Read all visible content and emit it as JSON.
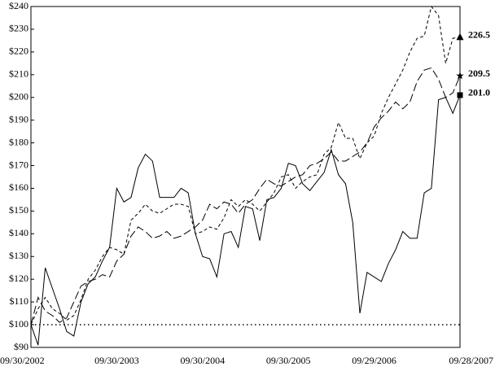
{
  "chart_data": {
    "type": "line",
    "categories": [
      "09/30/2002",
      null,
      null,
      null,
      null,
      null,
      null,
      null,
      null,
      null,
      null,
      null,
      "09/30/2003",
      null,
      null,
      null,
      null,
      null,
      null,
      null,
      null,
      null,
      null,
      null,
      "09/30/2004",
      null,
      null,
      null,
      null,
      null,
      null,
      null,
      null,
      null,
      null,
      null,
      "09/30/2005",
      null,
      null,
      null,
      null,
      null,
      null,
      null,
      null,
      null,
      null,
      null,
      "09/29/2006",
      null,
      null,
      null,
      null,
      null,
      null,
      null,
      null,
      null,
      null,
      null,
      "09/28/2007"
    ],
    "series": [
      {
        "color": "#000000",
        "dash": "long",
        "marker": "star",
        "end_label": "209.5",
        "values": [
          100,
          112,
          106,
          104,
          101,
          103,
          110,
          117,
          119,
          120,
          122,
          121,
          128,
          131,
          139,
          143,
          141,
          138,
          139,
          141,
          138,
          139,
          141,
          143,
          146,
          153,
          151,
          154,
          153,
          149,
          153,
          155,
          160,
          164,
          162,
          161,
          163,
          165,
          166,
          170,
          171,
          173,
          176,
          172,
          172,
          174,
          176,
          180,
          187,
          191,
          194,
          198,
          195,
          198,
          207,
          212,
          213,
          208,
          200,
          202,
          209.5
        ]
      },
      {
        "color": "#000000",
        "dash": "short",
        "marker": "triangle",
        "end_label": "226.5",
        "values": [
          100,
          107,
          112,
          107,
          105,
          102,
          104,
          111,
          120,
          124,
          130,
          134,
          133,
          131,
          146,
          149,
          153,
          150,
          149,
          151,
          153,
          153,
          152,
          140,
          141,
          143,
          142,
          147,
          155,
          152,
          155,
          153,
          150,
          154,
          158,
          165,
          166,
          160,
          163,
          165,
          166,
          175,
          178,
          189,
          182,
          182,
          173,
          180,
          183,
          193,
          200,
          206,
          212,
          220,
          226,
          227,
          240,
          236,
          215,
          226,
          226.5
        ]
      },
      {
        "color": "#000000",
        "dash": "solid",
        "marker": "square",
        "end_label": "201.0",
        "values": [
          100,
          91,
          125,
          116,
          107,
          97,
          95,
          110,
          118,
          121,
          128,
          134,
          160,
          154,
          156,
          169,
          175,
          172,
          156,
          156,
          156,
          160,
          158,
          140,
          130,
          129,
          121,
          140,
          141,
          134,
          152,
          151,
          137,
          155,
          156,
          160,
          171,
          170,
          162,
          159,
          163,
          167,
          177,
          166,
          162,
          145,
          105,
          123,
          121,
          119,
          127,
          133,
          141,
          138,
          138,
          158,
          160,
          199,
          200,
          193,
          201
        ]
      }
    ],
    "reference_line": 100,
    "ylim": [
      90,
      240
    ],
    "yticks": [
      {
        "value": 90,
        "label": "$90"
      },
      {
        "value": 100,
        "label": "$100"
      },
      {
        "value": 110,
        "label": "$110"
      },
      {
        "value": 120,
        "label": "$120"
      },
      {
        "value": 130,
        "label": "$130"
      },
      {
        "value": 140,
        "label": "$140"
      },
      {
        "value": 150,
        "label": "$150"
      },
      {
        "value": 160,
        "label": "$160"
      },
      {
        "value": 170,
        "label": "$170"
      },
      {
        "value": 180,
        "label": "$180"
      },
      {
        "value": 190,
        "label": "$190"
      },
      {
        "value": 200,
        "label": "$200"
      },
      {
        "value": 210,
        "label": "$210"
      },
      {
        "value": 220,
        "label": "$220"
      },
      {
        "value": 230,
        "label": "$230"
      },
      {
        "value": 240,
        "label": "$240"
      }
    ]
  }
}
